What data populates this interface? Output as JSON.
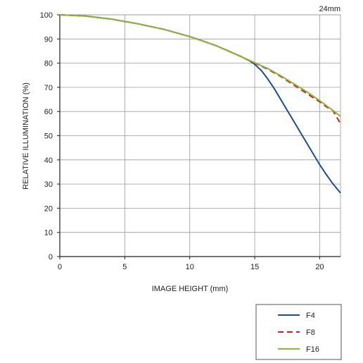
{
  "chart_data": {
    "type": "line",
    "title": "24mm",
    "xlabel": "IMAGE HEIGHT (mm)",
    "ylabel": "RELATIVE ILLUMINATION (%)",
    "xlim": [
      0,
      21.6
    ],
    "ylim": [
      0,
      100
    ],
    "xticks": [
      0,
      5,
      10,
      15,
      20
    ],
    "yticks": [
      0,
      10,
      20,
      30,
      40,
      50,
      60,
      70,
      80,
      90,
      100
    ],
    "grid": true,
    "legend_position": "bottom-right",
    "series": [
      {
        "name": "F4",
        "color": "#1f4e8c",
        "dash": "solid",
        "x": [
          0,
          2,
          4,
          6,
          8,
          10,
          11,
          12,
          13,
          14,
          14.6,
          15,
          15.5,
          16,
          16.5,
          17,
          17.5,
          18,
          18.5,
          19,
          19.5,
          20,
          20.5,
          21,
          21.6
        ],
        "y": [
          100,
          99.5,
          98.2,
          96.3,
          94,
          91,
          89.2,
          87.3,
          85,
          82.6,
          81,
          79.5,
          77,
          73.5,
          69.5,
          65,
          60.5,
          56,
          51.5,
          47,
          42.5,
          38,
          34,
          30.2,
          26.3
        ]
      },
      {
        "name": "F8",
        "color": "#cc1f1f",
        "dash": "dashed",
        "x": [
          0,
          2,
          4,
          6,
          8,
          10,
          12,
          14,
          15,
          16,
          17,
          18,
          19,
          20,
          20.5,
          21,
          21.6
        ],
        "y": [
          100,
          99.5,
          98.2,
          96.3,
          94,
          91,
          87.3,
          82.6,
          80,
          77.5,
          74.5,
          71,
          67.5,
          64,
          62,
          60.5,
          55
        ]
      },
      {
        "name": "F16",
        "color": "#8cb43c",
        "dash": "solid",
        "x": [
          0,
          2,
          4,
          6,
          8,
          10,
          12,
          14,
          15,
          16,
          17,
          18,
          19,
          20,
          20.5,
          21,
          21.6
        ],
        "y": [
          100,
          99.5,
          98.2,
          96.3,
          94,
          91,
          87.3,
          82.6,
          80.2,
          77.8,
          74.8,
          71.5,
          68.2,
          64.5,
          62.5,
          60.5,
          58
        ]
      }
    ]
  }
}
